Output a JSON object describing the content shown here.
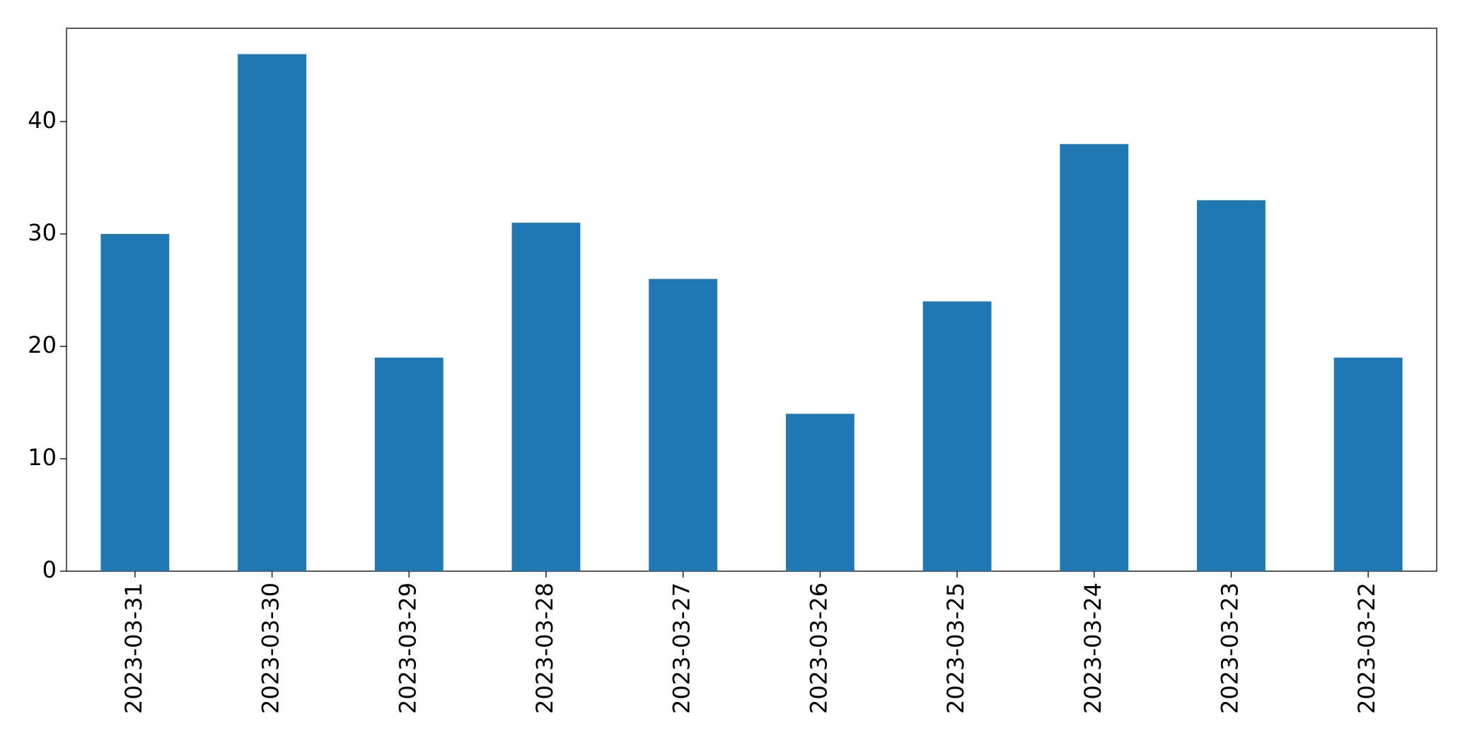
{
  "chart_data": {
    "type": "bar",
    "categories": [
      "2023-03-31",
      "2023-03-30",
      "2023-03-29",
      "2023-03-28",
      "2023-03-27",
      "2023-03-26",
      "2023-03-25",
      "2023-03-24",
      "2023-03-23",
      "2023-03-22"
    ],
    "values": [
      30,
      46,
      19,
      31,
      26,
      14,
      24,
      38,
      33,
      19
    ],
    "color": "#1f77b4",
    "ylim": [
      0,
      48.3
    ],
    "yticks": [
      0,
      10,
      20,
      30,
      40
    ],
    "grid": false
  }
}
